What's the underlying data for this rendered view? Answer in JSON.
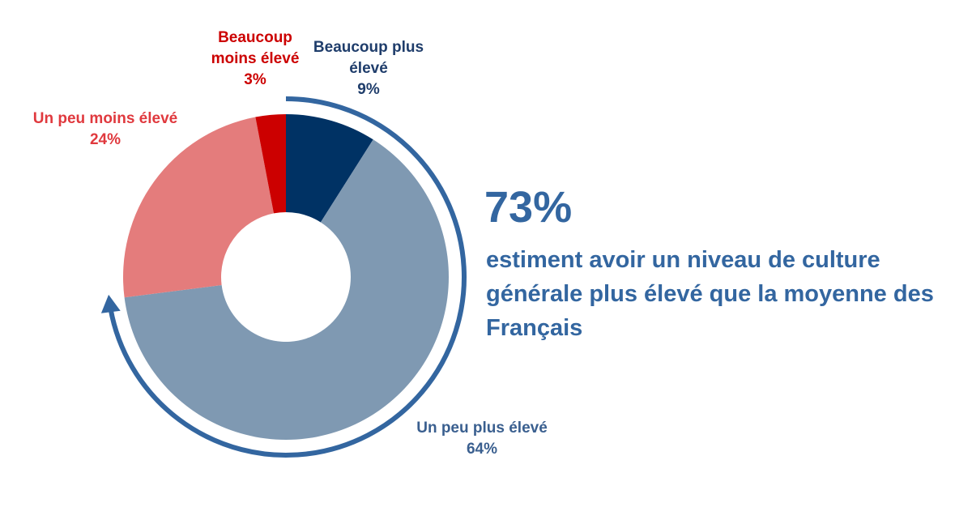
{
  "chart_data": {
    "type": "pie",
    "donut": true,
    "unit": "%",
    "slices": [
      {
        "label_lines": [
          "Beaucoup plus",
          "élevé"
        ],
        "value": 9,
        "value_label": "9%",
        "color": "#003264"
      },
      {
        "label_lines": [
          "Un peu plus élevé"
        ],
        "value": 64,
        "value_label": "64%",
        "color": "#7f99b2"
      },
      {
        "label_lines": [
          "Un peu moins élevé"
        ],
        "value": 24,
        "value_label": "24%",
        "color": "#e47c7c"
      },
      {
        "label_lines": [
          "Beaucoup",
          "moins élevé"
        ],
        "value": 3,
        "value_label": "3%",
        "color": "#cc0000"
      }
    ],
    "label_colors": [
      "#1f3d6b",
      "#3a5f8f",
      "#e0393e",
      "#cc0000"
    ]
  },
  "highlight": {
    "value": "73%",
    "text": "estiment avoir un niveau de culture générale plus élevé que la moyenne des Français",
    "color": "#3366a0"
  }
}
